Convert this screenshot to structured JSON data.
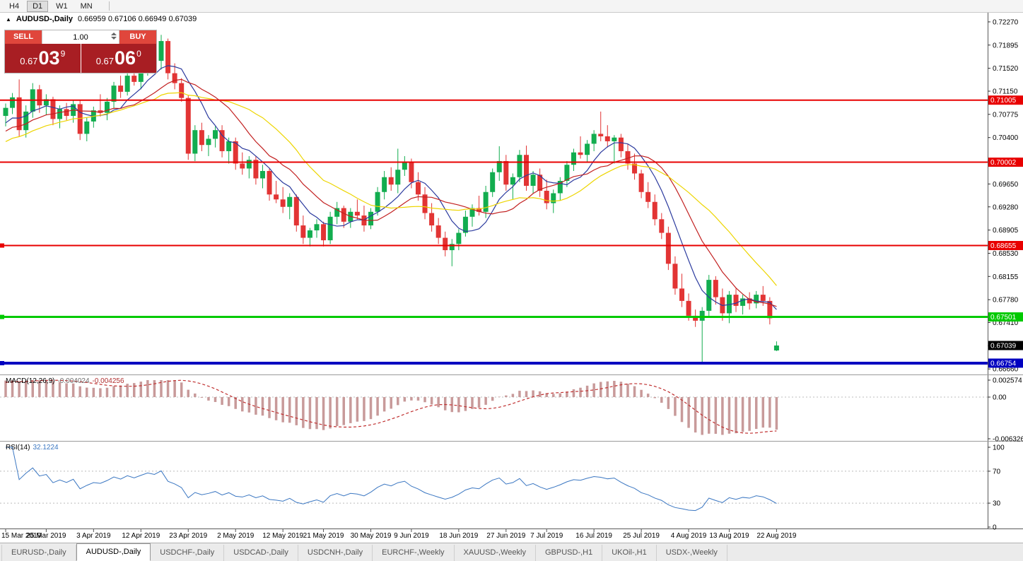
{
  "toolbar": {
    "timeframes": [
      "H4",
      "D1",
      "W1",
      "MN"
    ],
    "active": "D1"
  },
  "chart": {
    "collapse_icon": "▲",
    "title": "AUDUSD-,Daily",
    "ohlc": "0.66959 0.67106 0.66949 0.67039"
  },
  "trade_panel": {
    "sell_label": "SELL",
    "buy_label": "BUY",
    "volume": "1.00",
    "sell_price": {
      "base": "0.67",
      "big": "03",
      "sup": "9"
    },
    "buy_price": {
      "base": "0.67",
      "big": "06",
      "sup": "0"
    }
  },
  "macd_panel": {
    "label": "MACD(12,26,9)",
    "value1": "-0.004024",
    "value2": "-0.004256",
    "axis": [
      "0.002574",
      "0.00",
      "-0.006326"
    ]
  },
  "rsi_panel": {
    "label": "RSI(14)",
    "value": "32.1224",
    "axis": [
      "100",
      "70",
      "30",
      "0"
    ],
    "levels": [
      70,
      30
    ]
  },
  "footer": {
    "tabs": [
      "EURUSD-,Daily",
      "AUDUSD-,Daily",
      "USDCHF-,Daily",
      "USDCAD-,Daily",
      "USDCNH-,Daily",
      "EURCHF-,Weekly",
      "XAUUSD-,Weekly",
      "GBPUSD-,H1",
      "UKOil-,H1",
      "USDX-,Weekly"
    ],
    "active_index": 1
  },
  "chart_data": {
    "type": "candlestick",
    "symbol": "AUDUSD-",
    "timeframe": "Daily",
    "ohlc_current": {
      "open": 0.66959,
      "high": 0.67106,
      "low": 0.66949,
      "close": 0.67039
    },
    "y_range": {
      "top": 0.72395,
      "bottom": 0.66571
    },
    "y_axis_ticks": [
      "0.72270",
      "0.71895",
      "0.71520",
      "0.71150",
      "0.70775",
      "0.70400",
      "0.70025",
      "0.69650",
      "0.69280",
      "0.68905",
      "0.68530",
      "0.68155",
      "0.67780",
      "0.67410",
      "0.67035",
      "0.66660"
    ],
    "dates": [
      {
        "label": "15 Mar 2019",
        "index": 0
      },
      {
        "label": "25 Mar 2019",
        "index": 6
      },
      {
        "label": "3 Apr 2019",
        "index": 13
      },
      {
        "label": "12 Apr 2019",
        "index": 20
      },
      {
        "label": "23 Apr 2019",
        "index": 27
      },
      {
        "label": "2 May 2019",
        "index": 34
      },
      {
        "label": "12 May 2019",
        "index": 41
      },
      {
        "label": "21 May 2019",
        "index": 47
      },
      {
        "label": "30 May 2019",
        "index": 54
      },
      {
        "label": "9 Jun 2019",
        "index": 60
      },
      {
        "label": "18 Jun 2019",
        "index": 67
      },
      {
        "label": "27 Jun 2019",
        "index": 74
      },
      {
        "label": "7 Jul 2019",
        "index": 80
      },
      {
        "label": "16 Jul 2019",
        "index": 87
      },
      {
        "label": "25 Jul 2019",
        "index": 94
      },
      {
        "label": "4 Aug 2019",
        "index": 101
      },
      {
        "label": "13 Aug 2019",
        "index": 107
      },
      {
        "label": "22 Aug 2019",
        "index": 114
      }
    ],
    "hlines": [
      {
        "price": 0.71005,
        "label": "0.71005",
        "color": "#e80000",
        "width": 2,
        "marker": false
      },
      {
        "price": 0.70002,
        "label": "0.70002",
        "color": "#e80000",
        "width": 2,
        "marker": false
      },
      {
        "price": 0.68655,
        "label": "0.68655",
        "color": "#e80000",
        "width": 2,
        "marker": true
      },
      {
        "price": 0.67501,
        "label": "0.67501",
        "color": "#00ca00",
        "width": 3,
        "marker": true
      },
      {
        "price": 0.66754,
        "label": "0.66754",
        "color": "#0000c0",
        "width": 4,
        "marker": true
      }
    ],
    "price_label": {
      "price": 0.67039,
      "text": "0.67039",
      "bg": "#000000"
    },
    "moving_averages": [
      {
        "period": 7,
        "color": "#2b3a9e"
      },
      {
        "period": 13,
        "color": "#c22020"
      },
      {
        "period": 21,
        "color": "#edd500"
      }
    ],
    "macd": {
      "fast": 12,
      "slow": 26,
      "signal": 9,
      "range_max": 0.002574,
      "range_min": -0.006326,
      "histogram_color": "#c89a9a",
      "signal_color": "#c03030"
    },
    "rsi": {
      "period": 14,
      "color": "#3b77c2",
      "current": 32.1224
    },
    "colors": {
      "up": "#12ad4f",
      "down": "#e23434"
    },
    "candles": [
      [
        0.7075,
        0.7095,
        0.7058,
        0.7088
      ],
      [
        0.7088,
        0.7112,
        0.7078,
        0.7105
      ],
      [
        0.7105,
        0.7134,
        0.7042,
        0.7052
      ],
      [
        0.7052,
        0.7092,
        0.704,
        0.7082
      ],
      [
        0.7082,
        0.7128,
        0.7072,
        0.7118
      ],
      [
        0.7118,
        0.7125,
        0.708,
        0.7092
      ],
      [
        0.7092,
        0.711,
        0.7076,
        0.7102
      ],
      [
        0.7102,
        0.7106,
        0.706,
        0.707
      ],
      [
        0.707,
        0.7092,
        0.7055,
        0.7086
      ],
      [
        0.7086,
        0.7096,
        0.7068,
        0.7075
      ],
      [
        0.7075,
        0.71,
        0.7064,
        0.7094
      ],
      [
        0.7094,
        0.71,
        0.7036,
        0.7046
      ],
      [
        0.7046,
        0.7072,
        0.7034,
        0.7066
      ],
      [
        0.7066,
        0.709,
        0.7056,
        0.7084
      ],
      [
        0.7084,
        0.711,
        0.7074,
        0.708
      ],
      [
        0.708,
        0.7104,
        0.7068,
        0.7098
      ],
      [
        0.7098,
        0.713,
        0.7088,
        0.7124
      ],
      [
        0.7124,
        0.714,
        0.7104,
        0.7114
      ],
      [
        0.7114,
        0.7146,
        0.7108,
        0.714
      ],
      [
        0.714,
        0.716,
        0.7124,
        0.713
      ],
      [
        0.713,
        0.7156,
        0.7118,
        0.715
      ],
      [
        0.715,
        0.7176,
        0.714,
        0.717
      ],
      [
        0.717,
        0.7193,
        0.7154,
        0.7164
      ],
      [
        0.7164,
        0.7206,
        0.715,
        0.7196
      ],
      [
        0.7196,
        0.72,
        0.7134,
        0.7144
      ],
      [
        0.7144,
        0.716,
        0.7118,
        0.7128
      ],
      [
        0.7128,
        0.7136,
        0.7098,
        0.7104
      ],
      [
        0.7104,
        0.7108,
        0.7004,
        0.7014
      ],
      [
        0.7014,
        0.706,
        0.7002,
        0.7052
      ],
      [
        0.7052,
        0.7064,
        0.7018,
        0.7028
      ],
      [
        0.7028,
        0.7044,
        0.701,
        0.7038
      ],
      [
        0.7038,
        0.7058,
        0.7024,
        0.7052
      ],
      [
        0.7052,
        0.706,
        0.7008,
        0.7018
      ],
      [
        0.7018,
        0.704,
        0.6998,
        0.7034
      ],
      [
        0.7034,
        0.704,
        0.6988,
        0.6998
      ],
      [
        0.6998,
        0.7016,
        0.698,
        0.699
      ],
      [
        0.699,
        0.701,
        0.6974,
        0.7004
      ],
      [
        0.7004,
        0.701,
        0.6964,
        0.6974
      ],
      [
        0.6974,
        0.6996,
        0.6958,
        0.6986
      ],
      [
        0.6986,
        0.699,
        0.6938,
        0.6948
      ],
      [
        0.6948,
        0.697,
        0.6934,
        0.694
      ],
      [
        0.694,
        0.696,
        0.6918,
        0.6928
      ],
      [
        0.6928,
        0.695,
        0.6908,
        0.6944
      ],
      [
        0.6944,
        0.6948,
        0.6888,
        0.6898
      ],
      [
        0.6898,
        0.6914,
        0.6868,
        0.6878
      ],
      [
        0.6878,
        0.6894,
        0.6864,
        0.689
      ],
      [
        0.689,
        0.6908,
        0.6878,
        0.69
      ],
      [
        0.69,
        0.6904,
        0.6864,
        0.6874
      ],
      [
        0.6874,
        0.692,
        0.6868,
        0.6912
      ],
      [
        0.6912,
        0.6936,
        0.69,
        0.6926
      ],
      [
        0.6926,
        0.693,
        0.6894,
        0.6904
      ],
      [
        0.6904,
        0.6926,
        0.6894,
        0.692
      ],
      [
        0.692,
        0.694,
        0.6908,
        0.6914
      ],
      [
        0.6914,
        0.693,
        0.6888,
        0.6898
      ],
      [
        0.6898,
        0.6926,
        0.6892,
        0.692
      ],
      [
        0.692,
        0.696,
        0.6914,
        0.6952
      ],
      [
        0.6952,
        0.6986,
        0.694,
        0.6976
      ],
      [
        0.6976,
        0.6992,
        0.6954,
        0.6964
      ],
      [
        0.6964,
        0.7022,
        0.695,
        0.6988
      ],
      [
        0.6988,
        0.701,
        0.6978,
        0.7
      ],
      [
        0.7,
        0.7006,
        0.6958,
        0.6968
      ],
      [
        0.6968,
        0.6984,
        0.6938,
        0.6948
      ],
      [
        0.6948,
        0.696,
        0.6908,
        0.6918
      ],
      [
        0.6918,
        0.6934,
        0.6888,
        0.6898
      ],
      [
        0.6898,
        0.691,
        0.6868,
        0.6878
      ],
      [
        0.6878,
        0.6888,
        0.6848,
        0.6858
      ],
      [
        0.6858,
        0.6876,
        0.6832,
        0.6868
      ],
      [
        0.6868,
        0.6892,
        0.6858,
        0.6886
      ],
      [
        0.6886,
        0.6922,
        0.688,
        0.6912
      ],
      [
        0.6912,
        0.6932,
        0.6896,
        0.6926
      ],
      [
        0.6926,
        0.6946,
        0.6914,
        0.692
      ],
      [
        0.692,
        0.6962,
        0.691,
        0.6952
      ],
      [
        0.6952,
        0.699,
        0.6944,
        0.6984
      ],
      [
        0.6984,
        0.7026,
        0.697,
        0.7002
      ],
      [
        0.7002,
        0.7012,
        0.6954,
        0.6964
      ],
      [
        0.6964,
        0.6982,
        0.694,
        0.6976
      ],
      [
        0.6976,
        0.702,
        0.6968,
        0.7012
      ],
      [
        0.7012,
        0.7027,
        0.6954,
        0.6962
      ],
      [
        0.6962,
        0.6986,
        0.695,
        0.698
      ],
      [
        0.698,
        0.699,
        0.6944,
        0.6954
      ],
      [
        0.6954,
        0.6972,
        0.6924,
        0.6934
      ],
      [
        0.6934,
        0.6956,
        0.6918,
        0.695
      ],
      [
        0.695,
        0.6976,
        0.6938,
        0.697
      ],
      [
        0.697,
        0.7002,
        0.696,
        0.6996
      ],
      [
        0.6996,
        0.7022,
        0.6986,
        0.7016
      ],
      [
        0.7016,
        0.7042,
        0.7006,
        0.7012
      ],
      [
        0.7012,
        0.7036,
        0.7,
        0.703
      ],
      [
        0.703,
        0.7052,
        0.7018,
        0.7046
      ],
      [
        0.7046,
        0.7082,
        0.7034,
        0.7042
      ],
      [
        0.7042,
        0.706,
        0.7024,
        0.7034
      ],
      [
        0.7034,
        0.7044,
        0.6998,
        0.704
      ],
      [
        0.704,
        0.7046,
        0.7008,
        0.7018
      ],
      [
        0.7018,
        0.703,
        0.6988,
        0.6998
      ],
      [
        0.6998,
        0.7014,
        0.6972,
        0.6982
      ],
      [
        0.6982,
        0.6988,
        0.6942,
        0.6952
      ],
      [
        0.6952,
        0.6968,
        0.6926,
        0.6936
      ],
      [
        0.6936,
        0.6948,
        0.6898,
        0.6908
      ],
      [
        0.6908,
        0.6918,
        0.6876,
        0.6886
      ],
      [
        0.6886,
        0.6896,
        0.6826,
        0.6836
      ],
      [
        0.6836,
        0.6848,
        0.6786,
        0.6796
      ],
      [
        0.6796,
        0.682,
        0.6766,
        0.6776
      ],
      [
        0.6776,
        0.6788,
        0.6744,
        0.6752
      ],
      [
        0.6752,
        0.6762,
        0.6734,
        0.6744
      ],
      [
        0.6744,
        0.6766,
        0.6677,
        0.676
      ],
      [
        0.676,
        0.6818,
        0.6752,
        0.681
      ],
      [
        0.681,
        0.6816,
        0.677,
        0.6782
      ],
      [
        0.6782,
        0.6796,
        0.6744,
        0.6756
      ],
      [
        0.6756,
        0.6792,
        0.674,
        0.6786
      ],
      [
        0.6786,
        0.6796,
        0.6758,
        0.6768
      ],
      [
        0.6768,
        0.6786,
        0.6754,
        0.678
      ],
      [
        0.678,
        0.679,
        0.6762,
        0.6772
      ],
      [
        0.6772,
        0.6792,
        0.6764,
        0.6786
      ],
      [
        0.6786,
        0.68,
        0.6768,
        0.6776
      ],
      [
        0.6776,
        0.6782,
        0.6738,
        0.6748
      ],
      [
        0.66959,
        0.67106,
        0.66949,
        0.67039
      ]
    ]
  }
}
